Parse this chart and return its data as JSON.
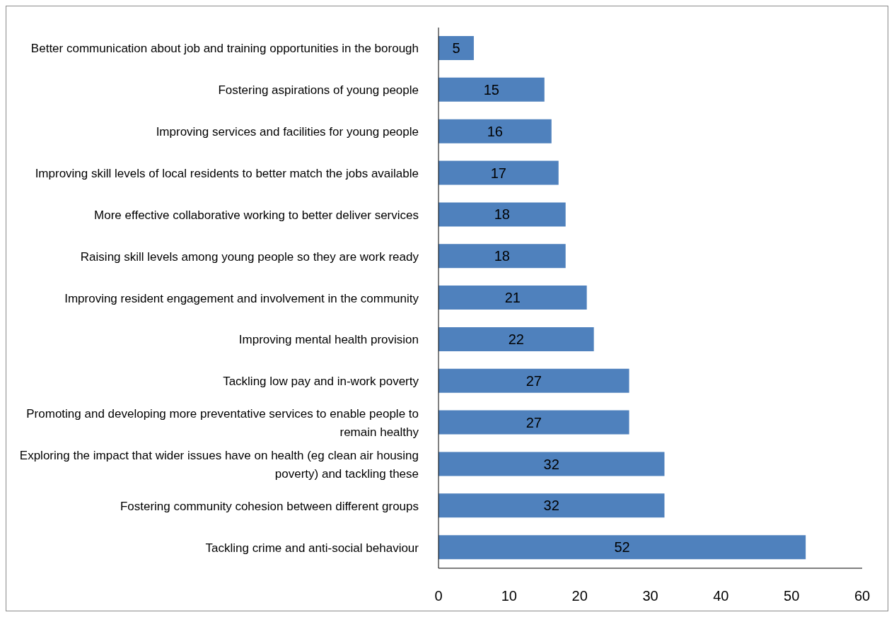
{
  "chart_data": {
    "type": "bar",
    "orientation": "horizontal",
    "categories": [
      "Better communication about job and training opportunities in the borough",
      "Fostering aspirations of young people",
      "Improving services and facilities for young people",
      "Improving skill levels of local residents to better match the jobs available",
      "More effective collaborative working to better deliver services",
      "Raising skill levels among young people so they are work ready",
      "Improving resident engagement and involvement in the community",
      "Improving mental health provision",
      "Tackling low pay and in-work poverty",
      "Promoting and developing more preventative services to enable people to remain healthy",
      "Exploring the impact that wider issues have on health (eg clean air housing poverty) and tackling these",
      "Fostering community cohesion between different groups",
      "Tackling crime and anti-social behaviour"
    ],
    "values": [
      5,
      15,
      16,
      17,
      18,
      18,
      21,
      22,
      27,
      27,
      32,
      32,
      52
    ],
    "color": "#4f81bd",
    "xlim": [
      0,
      60
    ],
    "xticks": [
      0,
      10,
      20,
      30,
      40,
      50,
      60
    ],
    "grid": false,
    "legend": false,
    "data_labels": true
  }
}
